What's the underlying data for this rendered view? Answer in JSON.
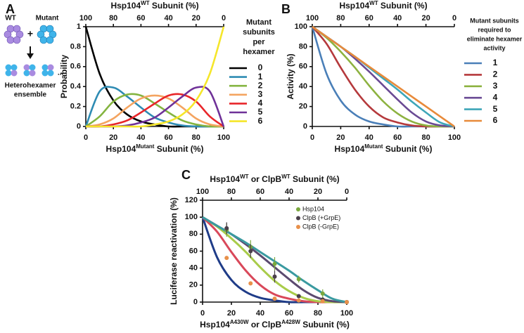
{
  "chart_data": [
    {
      "type": "line",
      "panel_label": "A",
      "annotations": [
        "WT",
        "+",
        "Mutant",
        "Heterohexamer",
        "ensemble",
        "..."
      ],
      "ylabel": "Probability",
      "xlabel": [
        "Hsp104",
        "Mutant",
        " Subunit (%)"
      ],
      "x2label": [
        "Hsp104",
        "WT",
        " Subunit (%)"
      ],
      "legend_title": [
        "Mutant",
        "subunits",
        "per",
        "hexamer"
      ],
      "x": [
        0,
        10,
        20,
        30,
        40,
        50,
        60,
        70,
        80,
        90,
        100
      ],
      "xlim": [
        0,
        100
      ],
      "xticks": [
        0,
        20,
        40,
        60,
        80,
        100
      ],
      "x2lim": [
        100,
        0
      ],
      "x2ticks": [
        100,
        80,
        60,
        40,
        20,
        0
      ],
      "ylim": [
        0,
        1
      ],
      "yticks": [
        0,
        0.2,
        0.4,
        0.6,
        0.8,
        1
      ],
      "series": [
        {
          "name": "0",
          "color": "#000000",
          "values": [
            1,
            0.53,
            0.26,
            0.12,
            0.05,
            0.02,
            0,
            0,
            0,
            0,
            0
          ]
        },
        {
          "name": "1",
          "color": "#2e8bb3",
          "values": [
            0,
            0.35,
            0.39,
            0.3,
            0.19,
            0.09,
            0.04,
            0.01,
            0,
            0,
            0
          ]
        },
        {
          "name": "2",
          "color": "#84b440",
          "values": [
            0,
            0.1,
            0.25,
            0.32,
            0.31,
            0.23,
            0.14,
            0.06,
            0.02,
            0,
            0
          ]
        },
        {
          "name": "3",
          "color": "#f4a460",
          "values": [
            0,
            0.02,
            0.08,
            0.19,
            0.28,
            0.31,
            0.28,
            0.19,
            0.08,
            0.02,
            0
          ]
        },
        {
          "name": "4",
          "color": "#e8262a",
          "values": [
            0,
            0,
            0.02,
            0.06,
            0.14,
            0.23,
            0.31,
            0.32,
            0.25,
            0.1,
            0
          ]
        },
        {
          "name": "5",
          "color": "#6f3198",
          "values": [
            0,
            0,
            0,
            0.01,
            0.04,
            0.09,
            0.19,
            0.3,
            0.39,
            0.35,
            0
          ]
        },
        {
          "name": "6",
          "color": "#f5e62a",
          "values": [
            0,
            0,
            0,
            0,
            0,
            0.02,
            0.05,
            0.12,
            0.26,
            0.53,
            1
          ]
        }
      ]
    },
    {
      "type": "line",
      "panel_label": "B",
      "ylabel": "Activity (%)",
      "xlabel": [
        "Hsp104",
        "Mutant",
        " Subunit (%)"
      ],
      "x2label": [
        "Hsp104",
        "WT",
        " Subunit (%)"
      ],
      "legend_title": [
        "Mutant subunits",
        "required to",
        "eliminate hexamer",
        "activity"
      ],
      "x": [
        0,
        10,
        20,
        30,
        40,
        50,
        60,
        70,
        80,
        90,
        100
      ],
      "xlim": [
        0,
        100
      ],
      "xticks": [
        0,
        20,
        40,
        60,
        80,
        100
      ],
      "x2lim": [
        100,
        0
      ],
      "x2ticks": [
        100,
        80,
        60,
        40,
        20,
        0
      ],
      "ylim": [
        0,
        100
      ],
      "yticks": [
        0,
        20,
        40,
        60,
        80,
        100
      ],
      "series": [
        {
          "name": "1",
          "color": "#4a7fb8",
          "values": [
            100,
            53,
            26,
            12,
            5,
            2,
            0,
            0,
            0,
            0,
            0
          ]
        },
        {
          "name": "2",
          "color": "#b5393c",
          "values": [
            100,
            83,
            59,
            37,
            20,
            9,
            4,
            1,
            0,
            0,
            0
          ]
        },
        {
          "name": "3",
          "color": "#8db240",
          "values": [
            100,
            89,
            75,
            59,
            41,
            25,
            13,
            5,
            1,
            0,
            0
          ]
        },
        {
          "name": "4",
          "color": "#6a4a94",
          "values": [
            100,
            90,
            80,
            68,
            55,
            41,
            27,
            14,
            5,
            1,
            0
          ]
        },
        {
          "name": "5",
          "color": "#3ea6b8",
          "values": [
            100,
            90,
            80,
            70,
            59,
            48,
            37,
            25,
            14,
            4,
            0
          ]
        },
        {
          "name": "6",
          "color": "#e88a3a",
          "values": [
            100,
            90,
            80,
            70,
            60,
            50,
            40,
            30,
            20,
            10,
            0
          ]
        }
      ]
    },
    {
      "type": "line",
      "panel_label": "C",
      "ylabel": "Luciferase reactivation (%)",
      "xlabel": [
        "Hsp104",
        "A430W",
        " or ClpB",
        "A428W",
        " Subunit (%)"
      ],
      "x2label": [
        "Hsp104",
        "WT",
        " or ClpB",
        "WT",
        " Subunit (%)"
      ],
      "x": [
        0,
        10,
        20,
        30,
        40,
        50,
        60,
        70,
        80,
        90,
        100
      ],
      "xlim": [
        0,
        100
      ],
      "xticks": [
        0,
        20,
        40,
        60,
        80,
        100
      ],
      "x2lim": [
        100,
        0
      ],
      "x2ticks": [
        100,
        80,
        60,
        40,
        20,
        0
      ],
      "ylim": [
        0,
        120
      ],
      "yticks": [
        0,
        20,
        40,
        60,
        80,
        100,
        120
      ],
      "series": [
        {
          "color": "#1f3c88",
          "values": [
            100,
            53,
            26,
            12,
            5,
            2,
            0,
            0,
            0,
            0,
            0
          ]
        },
        {
          "color": "#d9485a",
          "values": [
            100,
            83,
            59,
            37,
            20,
            9,
            4,
            1,
            0,
            0,
            0
          ]
        },
        {
          "color": "#a9cc4a",
          "values": [
            100,
            89,
            75,
            59,
            41,
            25,
            13,
            5,
            1,
            0,
            0
          ]
        },
        {
          "color": "#5b4a6f",
          "values": [
            100,
            90,
            80,
            68,
            55,
            41,
            27,
            14,
            5,
            1,
            0
          ]
        },
        {
          "color": "#3a9aa0",
          "values": [
            100,
            90,
            80,
            70,
            59,
            48,
            37,
            25,
            14,
            4,
            0
          ]
        },
        {
          "name": "Hsp104",
          "mode": "markers",
          "color": "#7aa83e",
          "x": [
            16.7,
            33.3,
            50,
            66.7,
            83.3,
            100
          ],
          "values": [
            85,
            65,
            45,
            27,
            10,
            0
          ],
          "errors": [
            8,
            8,
            8,
            4,
            5,
            0
          ]
        },
        {
          "name": "ClpB (+GrpE)",
          "mode": "markers",
          "color": "#4a3f4a",
          "x": [
            16.7,
            33.3,
            50,
            66.7,
            83.3,
            100
          ],
          "values": [
            87,
            60,
            30,
            7,
            3,
            0
          ],
          "errors": [
            7,
            8,
            7,
            2,
            2,
            0
          ]
        },
        {
          "name": "ClpB (-GrpE)",
          "mode": "markers",
          "color": "#e8904a",
          "x": [
            16.7,
            33.3,
            50,
            66.7,
            83.3,
            100
          ],
          "values": [
            52,
            22,
            4,
            2,
            1,
            0
          ],
          "errors": [
            0,
            0,
            0,
            0,
            0,
            0
          ]
        }
      ]
    }
  ]
}
